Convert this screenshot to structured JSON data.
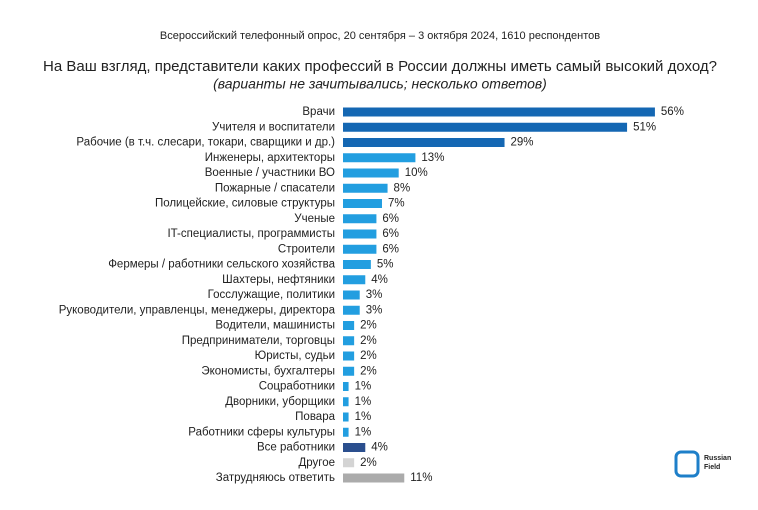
{
  "chart_data": {
    "type": "bar",
    "orientation": "horizontal",
    "subtitle_top": "Всероссийский телефонный опрос, 20 сентября – 3 октября 2024, 1610 респондентов",
    "title": "На Ваш взгляд, представители каких профессий в России должны иметь самый высокий доход?",
    "subtitle": "(варианты не зачитывались; несколько ответов)",
    "categories": [
      "Врачи",
      "Учителя и воспитатели",
      "Рабочие (в т.ч. слесари, токари, сварщики и др.)",
      "Инженеры, архитекторы",
      "Военные / участники ВО",
      "Пожарные / спасатели",
      "Полицейские, силовые структуры",
      "Ученые",
      "IT-специалисты, программисты",
      "Строители",
      "Фермеры / работники сельского хозяйства",
      "Шахтеры, нефтяники",
      "Госслужащие, политики",
      "Руководители, управленцы, менеджеры, директора",
      "Водители, машинисты",
      "Предприниматели, торговцы",
      "Юристы, судьи",
      "Экономисты, бухгалтеры",
      "Соцработники",
      "Дворники, уборщики",
      "Повара",
      "Работники сферы культуры",
      "Все работники",
      "Другое",
      "Затрудняюсь ответить"
    ],
    "values": [
      56,
      51,
      29,
      13,
      10,
      8,
      7,
      6,
      6,
      6,
      5,
      4,
      3,
      3,
      2,
      2,
      2,
      2,
      1,
      1,
      1,
      1,
      4,
      2,
      11
    ],
    "value_labels": [
      "56%",
      "51%",
      "29%",
      "13%",
      "10%",
      "8%",
      "7%",
      "6%",
      "6%",
      "6%",
      "5%",
      "4%",
      "3%",
      "3%",
      "2%",
      "2%",
      "2%",
      "2%",
      "1%",
      "1%",
      "1%",
      "1%",
      "4%",
      "2%",
      "11%"
    ],
    "colors": [
      "#1467b3",
      "#1467b3",
      "#1467b3",
      "#229ee0",
      "#229ee0",
      "#229ee0",
      "#229ee0",
      "#229ee0",
      "#229ee0",
      "#229ee0",
      "#229ee0",
      "#229ee0",
      "#229ee0",
      "#229ee0",
      "#229ee0",
      "#229ee0",
      "#229ee0",
      "#229ee0",
      "#229ee0",
      "#229ee0",
      "#229ee0",
      "#229ee0",
      "#2b4f8e",
      "#d4d4d4",
      "#ababab"
    ],
    "logo": [
      "Russian",
      "Field"
    ]
  }
}
